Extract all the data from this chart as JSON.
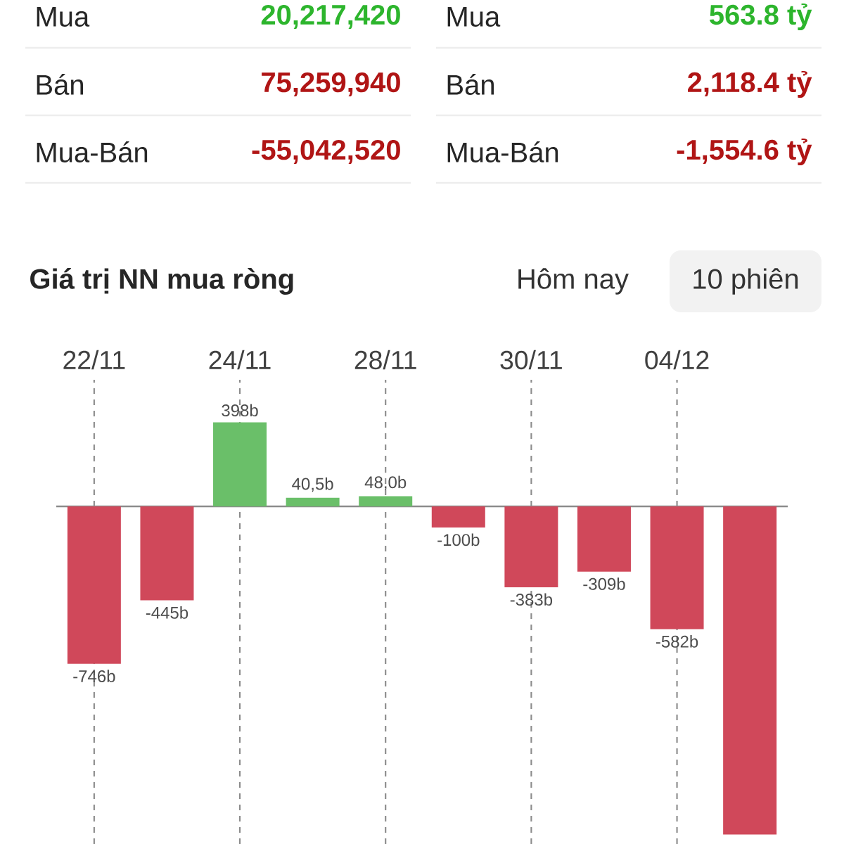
{
  "chart_data": [
    {
      "type": "other",
      "annotations": [
        "Mua",
        "20,217,420",
        "Mua",
        "563.8 tỷ",
        "Bán",
        "75,259,940",
        "Bán",
        "2,118.4 tỷ",
        "Mua-Bán",
        "-55,042,520",
        "Mua-Bán",
        "-1,554.6 tỷ"
      ]
    },
    {
      "type": "bar",
      "title": "Giá trị NN mua ròng",
      "annotations": [
        "Hôm nay",
        "10 phiên"
      ],
      "categories": [
        "22/11",
        null,
        "24/11",
        null,
        "28/11",
        null,
        "30/11",
        null,
        "04/12",
        null
      ],
      "values": [
        -746,
        -445,
        398,
        40.5,
        48.0,
        -100,
        -383,
        -309,
        -582,
        -1554.6
      ],
      "colors": [
        "#d0485a",
        "#d0485a",
        "#6abf69",
        "#6abf69",
        "#6abf69",
        "#d0485a",
        "#d0485a",
        "#d0485a",
        "#d0485a",
        "#d0485a"
      ],
      "value_labels": [
        "-746b",
        "-445b",
        "398b",
        "40,5b",
        "48,0b",
        "-100b",
        "-383b",
        "-309b",
        "-582b",
        null
      ],
      "ylim": [
        -1600,
        600
      ],
      "grid": "x"
    }
  ]
}
